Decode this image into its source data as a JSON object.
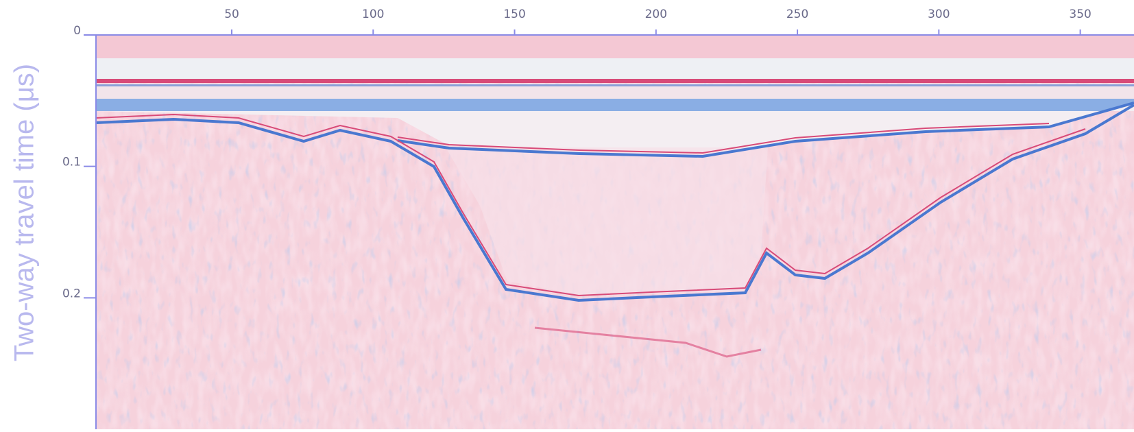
{
  "chart_data": {
    "type": "radargram",
    "ylabel": "Two-way travel time (μs)",
    "xlim": [
      2,
      369
    ],
    "xticks": [
      50,
      100,
      150,
      200,
      250,
      300,
      350
    ],
    "ylim": [
      0,
      0.3
    ],
    "yticks": [
      0,
      0.1,
      0.2
    ],
    "y_inverted": true,
    "x_axis_position": "top"
  }
}
